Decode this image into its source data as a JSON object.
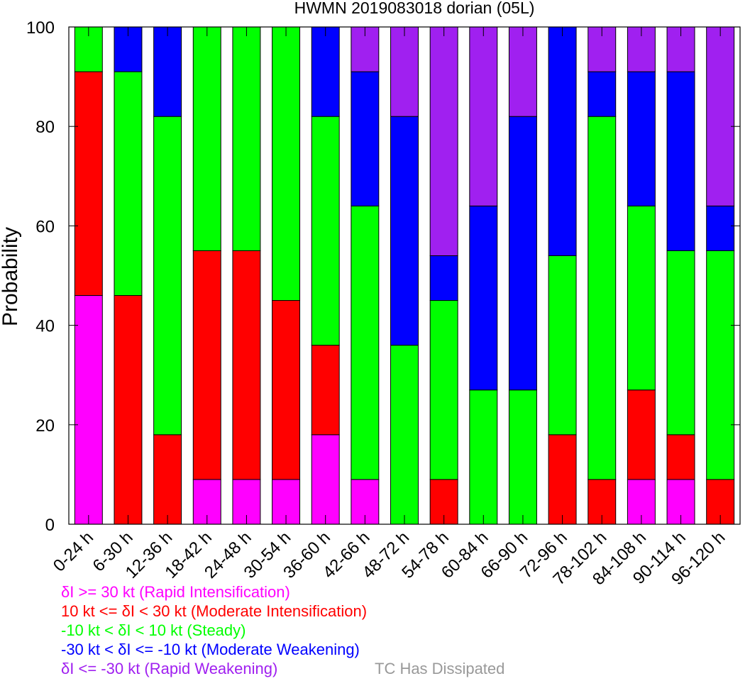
{
  "chart_data": {
    "type": "bar",
    "stacked": true,
    "title": "HWMN 2019083018 dorian (05L)",
    "ylabel": "Probability",
    "xlabel": "",
    "ylim": [
      0,
      100
    ],
    "yticks": [
      0,
      20,
      40,
      60,
      80,
      100
    ],
    "grid": false,
    "categories": [
      "0-24 h",
      "6-30 h",
      "12-36 h",
      "18-42 h",
      "24-48 h",
      "30-54 h",
      "36-60 h",
      "42-66 h",
      "48-72 h",
      "54-78 h",
      "60-84 h",
      "66-90 h",
      "72-96 h",
      "78-102 h",
      "84-108 h",
      "90-114 h",
      "96-120 h"
    ],
    "series": [
      {
        "name": "δI >= 30 kt (Rapid Intensification)",
        "color": "#ff00ff",
        "values": [
          46,
          0,
          0,
          9,
          9,
          9,
          18,
          9,
          0,
          0,
          0,
          0,
          0,
          0,
          9,
          9,
          0
        ]
      },
      {
        "name": "10 kt <= δI < 30 kt (Moderate Intensification)",
        "color": "#ff0000",
        "values": [
          45,
          46,
          18,
          46,
          46,
          36,
          18,
          0,
          0,
          9,
          0,
          0,
          18,
          9,
          18,
          9,
          9
        ]
      },
      {
        "name": "-10 kt < δI < 10 kt (Steady)",
        "color": "#00ff00",
        "values": [
          9,
          45,
          64,
          45,
          45,
          55,
          46,
          55,
          36,
          36,
          27,
          27,
          36,
          73,
          37,
          37,
          46
        ]
      },
      {
        "name": "-30 kt < δI <= -10 kt (Moderate Weakening)",
        "color": "#0000ff",
        "values": [
          0,
          9,
          18,
          0,
          0,
          0,
          18,
          27,
          46,
          9,
          37,
          55,
          46,
          9,
          27,
          36,
          9
        ]
      },
      {
        "name": "δI <= -30 kt (Rapid Weakening)",
        "color": "#a020f0",
        "values": [
          0,
          0,
          0,
          0,
          0,
          0,
          0,
          9,
          18,
          46,
          36,
          18,
          0,
          9,
          9,
          9,
          36
        ]
      },
      {
        "name": "TC Has Dissipated",
        "color": "#999999",
        "values": [
          0,
          0,
          0,
          0,
          0,
          0,
          0,
          0,
          0,
          0,
          0,
          0,
          0,
          0,
          0,
          0,
          0
        ]
      }
    ],
    "legend_placement": "bottom"
  }
}
